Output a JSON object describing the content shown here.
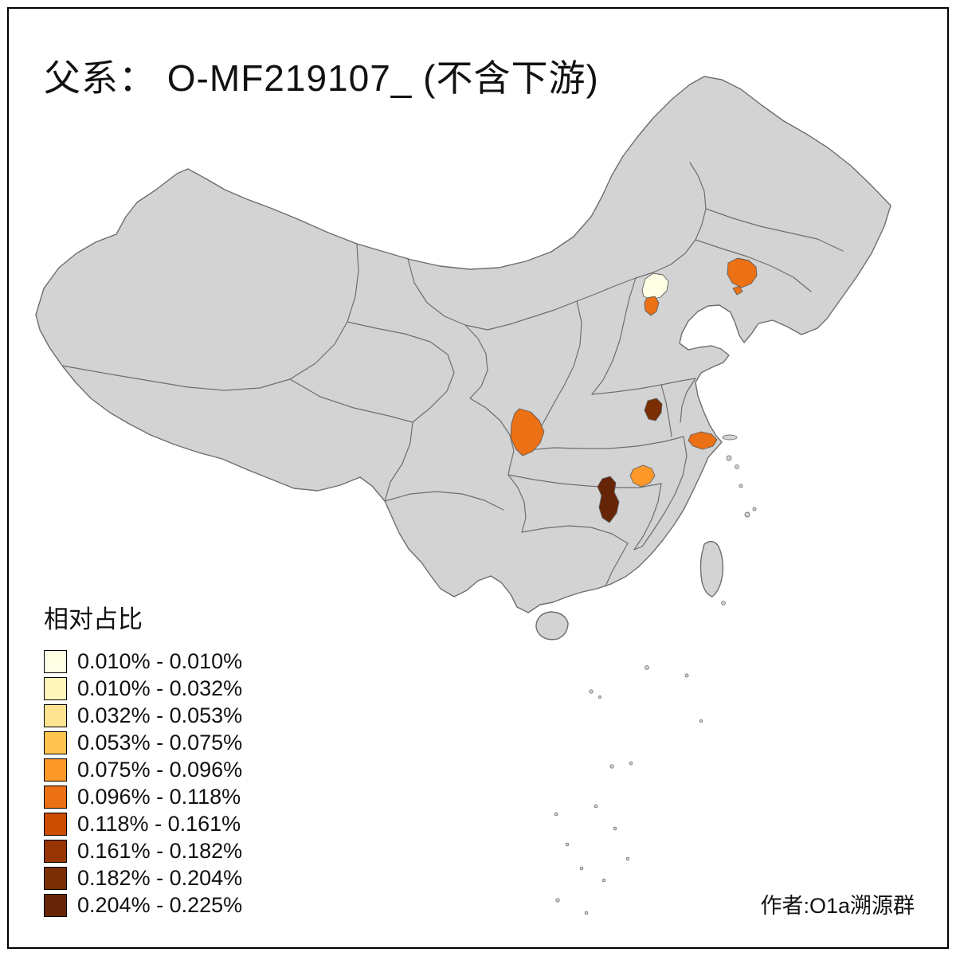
{
  "title": "父系： O-MF219107_ (不含下游)",
  "credit": "作者:O1a溯源群",
  "legend": {
    "title": "相对占比",
    "entries": [
      {
        "label": "0.010% - 0.010%",
        "color": "#FFFFE5"
      },
      {
        "label": "0.010% - 0.032%",
        "color": "#FFF7BC"
      },
      {
        "label": "0.032% - 0.053%",
        "color": "#FEE391"
      },
      {
        "label": "0.053% - 0.075%",
        "color": "#FEC44F"
      },
      {
        "label": "0.075% - 0.096%",
        "color": "#FE9929"
      },
      {
        "label": "0.096% - 0.118%",
        "color": "#EC7014"
      },
      {
        "label": "0.118% - 0.161%",
        "color": "#CC4C02"
      },
      {
        "label": "0.161% - 0.182%",
        "color": "#993404"
      },
      {
        "label": "0.182% - 0.204%",
        "color": "#7A2E04"
      },
      {
        "label": "0.204% - 0.225%",
        "color": "#662506"
      }
    ]
  },
  "map": {
    "land_color": "#D3D3D3",
    "border_color": "#6E6E6E",
    "background": "#FFFFFF",
    "regions": [
      {
        "name": "beijing-area",
        "color": "#FFFFE5",
        "range": "0.010% - 0.010%"
      },
      {
        "name": "south-of-beijing-area",
        "color": "#EC7014",
        "range": "0.096% - 0.118%"
      },
      {
        "name": "liaoning-area",
        "color": "#EC7014",
        "range": "0.096% - 0.118%"
      },
      {
        "name": "chongqing-area",
        "color": "#EC7014",
        "range": "0.096% - 0.118%"
      },
      {
        "name": "henan-area",
        "color": "#7A2E04",
        "range": "0.182% - 0.204%"
      },
      {
        "name": "jiangsu-shanghai-area",
        "color": "#EC7014",
        "range": "0.096% - 0.118%"
      },
      {
        "name": "hunan-area",
        "color": "#662506",
        "range": "0.204% - 0.225%"
      },
      {
        "name": "hunan-jiangxi-area",
        "color": "#FE9929",
        "range": "0.075% - 0.096%"
      }
    ]
  }
}
